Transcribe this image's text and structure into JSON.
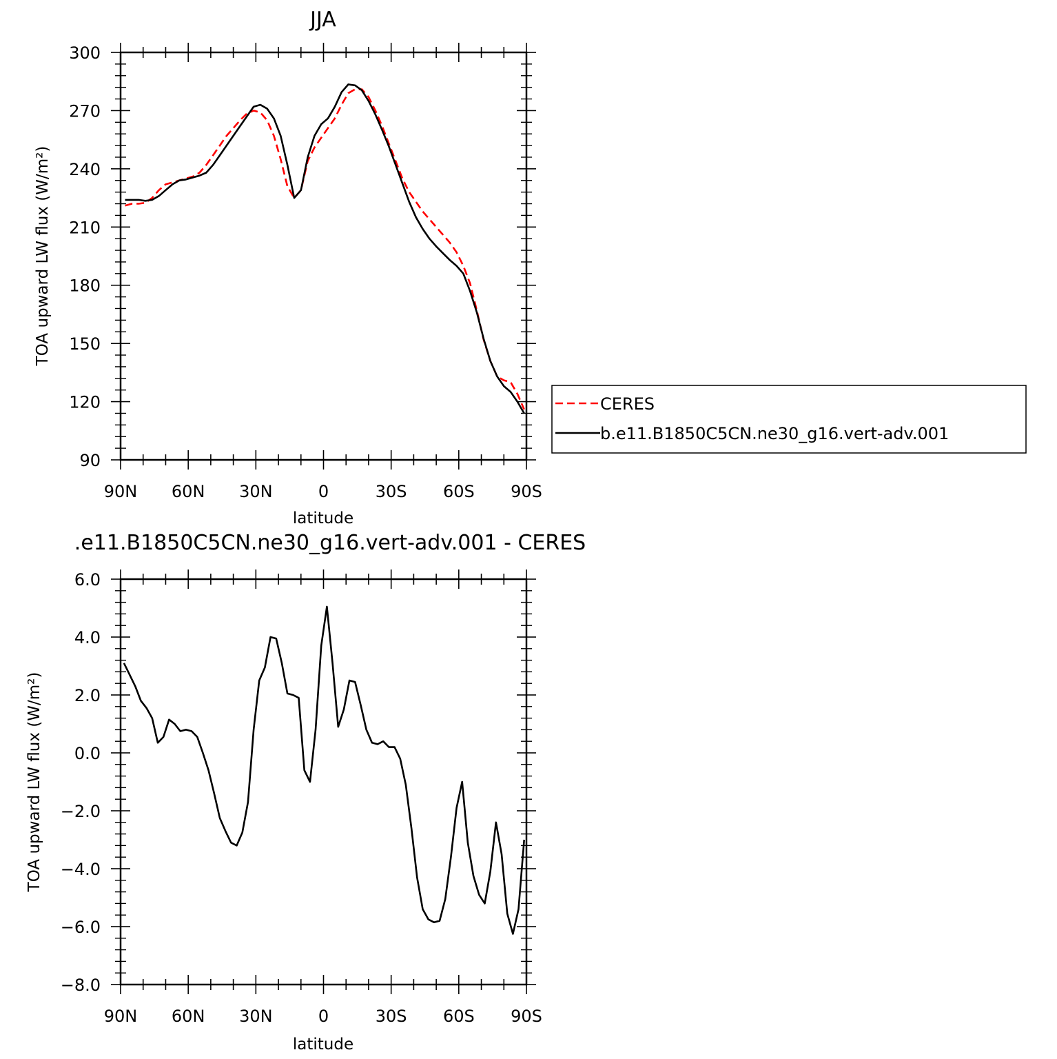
{
  "chart_data": [
    {
      "type": "line",
      "title": "JJA",
      "xlabel": "latitude",
      "ylabel": "TOA upward LW flux (W/m²)",
      "xlim": [
        90,
        -90
      ],
      "ylim": [
        90,
        300
      ],
      "yticks": [
        90,
        120,
        150,
        180,
        210,
        240,
        270,
        300
      ],
      "yticklabels": [
        "90",
        "120",
        "150",
        "180",
        "210",
        "240",
        "270",
        "300"
      ],
      "xticks": [
        90,
        60,
        30,
        0,
        -30,
        -60,
        -90
      ],
      "xticklabels": [
        "90N",
        "60N",
        "30N",
        "0",
        "30S",
        "60S",
        "90S"
      ],
      "legend": {
        "placement": "right-outside",
        "entries": [
          "CERES",
          "b.e11.B1850C5CN.ne30_g16.vert-adv.001"
        ]
      },
      "series": [
        {
          "name": "CERES",
          "color": "#ff0000",
          "dash": true,
          "x": [
            88,
            85,
            82,
            79,
            76,
            73,
            70,
            67,
            64,
            61,
            58,
            55,
            52,
            49,
            46,
            43,
            40,
            37,
            34,
            31,
            28,
            25,
            22,
            19,
            16,
            13,
            10,
            7,
            4,
            1,
            -2,
            -5,
            -8,
            -11,
            -14,
            -17,
            -20,
            -23,
            -26,
            -29,
            -32,
            -35,
            -38,
            -41,
            -44,
            -47,
            -50,
            -53,
            -56,
            -59,
            -62,
            -65,
            -68,
            -71,
            -74,
            -77,
            -80,
            -83,
            -86,
            -89
          ],
          "y": [
            221,
            222,
            222,
            222.5,
            225,
            229,
            232,
            233,
            234,
            235,
            236,
            238,
            242,
            247,
            252,
            257,
            261,
            265,
            268.5,
            270,
            269,
            265,
            257,
            245,
            231,
            225,
            229,
            244,
            251,
            256,
            261,
            266,
            273,
            279,
            281,
            281,
            277,
            270,
            262,
            253,
            244,
            235,
            228,
            223,
            218,
            214,
            210,
            206,
            202,
            197,
            190,
            181,
            167,
            152,
            141,
            133,
            131,
            130,
            124,
            116
          ]
        },
        {
          "name": "b.e11.B1850C5CN.ne30_g16.vert-adv.001",
          "color": "#000000",
          "dash": false,
          "x": [
            88,
            85,
            82,
            79,
            76,
            73,
            70,
            67,
            64,
            61,
            58,
            55,
            52,
            49,
            46,
            43,
            40,
            37,
            34,
            31,
            28,
            25,
            22,
            19,
            16,
            13,
            10,
            7,
            4,
            1,
            -2,
            -5,
            -8,
            -11,
            -14,
            -17,
            -20,
            -23,
            -26,
            -29,
            -32,
            -35,
            -38,
            -41,
            -44,
            -47,
            -50,
            -53,
            -56,
            -59,
            -62,
            -65,
            -68,
            -71,
            -74,
            -77,
            -80,
            -83,
            -86,
            -89
          ],
          "y": [
            224,
            224,
            224,
            223.5,
            224,
            226,
            229,
            232,
            234,
            234.5,
            235.5,
            236.5,
            238,
            242,
            247,
            252,
            257,
            262,
            267,
            272,
            273,
            271,
            266,
            257,
            242,
            225,
            229,
            246,
            257,
            263,
            266,
            272,
            279.5,
            283.5,
            283,
            280.5,
            275,
            268,
            260,
            251.5,
            242,
            232.5,
            223,
            215,
            209,
            204,
            200,
            196.5,
            193,
            190,
            186,
            177,
            166,
            152.5,
            141,
            133,
            128,
            125,
            120,
            114
          ]
        }
      ]
    },
    {
      "type": "line",
      "title": ".e11.B1850C5CN.ne30_g16.vert-adv.001 - CERES",
      "xlabel": "latitude",
      "ylabel": "TOA upward LW flux (W/m²)",
      "xlim": [
        90,
        -90
      ],
      "ylim": [
        -8.0,
        6.0
      ],
      "yticks": [
        -8.0,
        -6.0,
        -4.0,
        -2.0,
        0.0,
        2.0,
        4.0,
        6.0
      ],
      "yticklabels": [
        "−8.0",
        "−6.0",
        "−4.0",
        "−2.0",
        "0.0",
        "2.0",
        "4.0",
        "6.0"
      ],
      "xticks": [
        90,
        60,
        30,
        0,
        -30,
        -60,
        -90
      ],
      "xticklabels": [
        "90N",
        "60N",
        "30N",
        "0",
        "30S",
        "60S",
        "90S"
      ],
      "series": [
        {
          "color": "#000000",
          "x": [
            88.5,
            86,
            83.5,
            81,
            78.5,
            76,
            73.5,
            71,
            68.5,
            66,
            63.5,
            61,
            58.5,
            56,
            53.5,
            51,
            48.5,
            46,
            43.5,
            41,
            38.5,
            36,
            33.5,
            31,
            28.5,
            26,
            23.5,
            21,
            18.5,
            16,
            13.5,
            11,
            8.5,
            6,
            3.5,
            1,
            -1.5,
            -4,
            -6.5,
            -9,
            -11.5,
            -14,
            -16.5,
            -19,
            -21.5,
            -24,
            -26.5,
            -29,
            -31.5,
            -34,
            -36.5,
            -39,
            -41.5,
            -44,
            -46.5,
            -49,
            -51.5,
            -54,
            -56.5,
            -59,
            -61.5,
            -64,
            -66.5,
            -69,
            -71.5,
            -74,
            -76.5,
            -79,
            -81.5,
            -84,
            -86.5,
            -89
          ],
          "y": [
            3.1,
            2.7,
            2.3,
            1.8,
            1.55,
            1.2,
            0.35,
            0.55,
            1.15,
            1.0,
            0.75,
            0.8,
            0.75,
            0.55,
            0.0,
            -0.6,
            -1.4,
            -2.25,
            -2.7,
            -3.1,
            -3.2,
            -2.75,
            -1.7,
            0.8,
            2.5,
            2.95,
            4.0,
            3.95,
            3.1,
            2.05,
            2.0,
            1.9,
            -0.6,
            -1.0,
            0.8,
            3.7,
            5.05,
            3.1,
            0.9,
            1.5,
            2.5,
            2.45,
            1.65,
            0.8,
            0.35,
            0.3,
            0.4,
            0.2,
            0.2,
            -0.2,
            -1.1,
            -2.6,
            -4.3,
            -5.4,
            -5.75,
            -5.85,
            -5.8,
            -5.05,
            -3.6,
            -1.9,
            -1.0,
            -3.1,
            -4.25,
            -4.9,
            -5.2,
            -4.1,
            -2.4,
            -3.5,
            -5.55,
            -6.25,
            -5.4,
            -3.0
          ]
        }
      ]
    }
  ]
}
